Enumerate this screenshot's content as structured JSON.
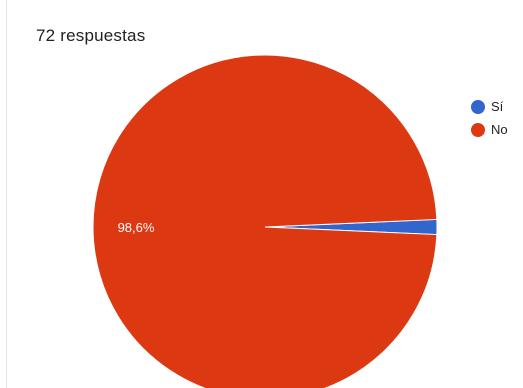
{
  "summary": {
    "response_count": "72 respuestas"
  },
  "chart_data": {
    "type": "pie",
    "categories": [
      "Sí",
      "No"
    ],
    "values": [
      1.4,
      98.6
    ],
    "data_labels": [
      "",
      "98,6%"
    ],
    "legend": "right",
    "colors": [
      "#3366cc",
      "#dc3912"
    ],
    "slice_border_color": "#ffffff"
  }
}
